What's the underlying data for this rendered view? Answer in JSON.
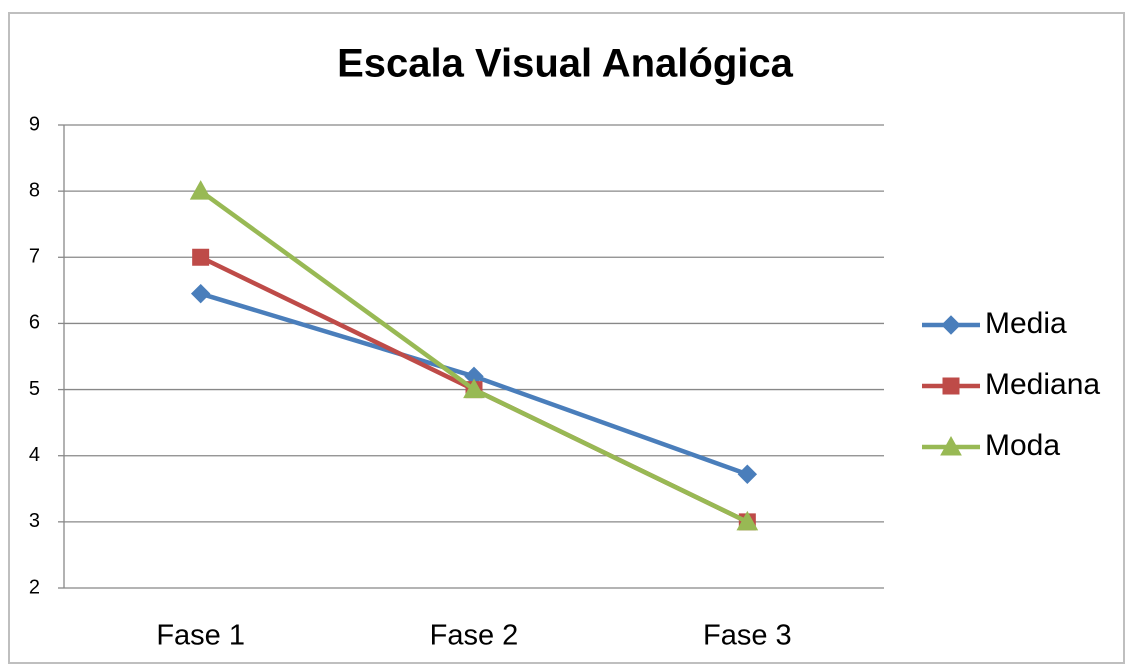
{
  "chart_data": {
    "type": "line",
    "title": "Escala Visual Analógica",
    "categories": [
      "Fase 1",
      "Fase 2",
      "Fase 3"
    ],
    "series": [
      {
        "name": "Media",
        "color": "#4a7ebb",
        "marker": "diamond",
        "values": [
          6.45,
          5.2,
          3.72
        ]
      },
      {
        "name": "Mediana",
        "color": "#be4b48",
        "marker": "square",
        "values": [
          7,
          5,
          3
        ]
      },
      {
        "name": "Moda",
        "color": "#98b954",
        "marker": "triangle",
        "values": [
          8,
          5,
          3
        ]
      }
    ],
    "ylim": [
      2,
      9
    ],
    "yticks": [
      2,
      3,
      4,
      5,
      6,
      7,
      8,
      9
    ],
    "grid": true,
    "legend": "right"
  }
}
